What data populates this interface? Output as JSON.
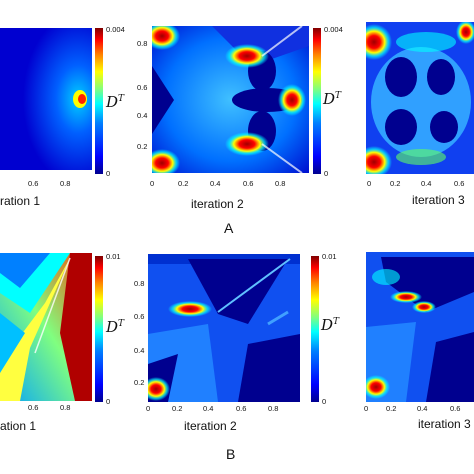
{
  "row_a": {
    "label": "A",
    "colorbar": {
      "max_label": "0.004",
      "min_label": "0",
      "symbol": "D",
      "superscript": "T"
    },
    "captions": {
      "c1": "ration 1",
      "c2": "iteration 2",
      "c3": "iteration 3"
    },
    "p1_xticks": [
      "0.6",
      "0.8"
    ],
    "p2_xticks": [
      "0",
      "0.2",
      "0.4",
      "0.6",
      "0.8"
    ],
    "p2_yticks": [
      "0.8",
      "0.6",
      "0.4",
      "0.2"
    ],
    "p3_xticks": [
      "0",
      "0.2",
      "0.4",
      "0.6"
    ]
  },
  "row_b": {
    "label": "B",
    "colorbar": {
      "max_label": "0.01",
      "min_label": "0",
      "symbol": "D",
      "superscript": "T"
    },
    "captions": {
      "c1": "ation 1",
      "c2": "iteration 2",
      "c3": "iteration 3"
    },
    "p1_xticks": [
      "0.6",
      "0.8"
    ],
    "p2_xticks": [
      "0",
      "0.2",
      "0.4",
      "0.6",
      "0.8"
    ],
    "p2_yticks": [
      "0.8",
      "0.6",
      "0.4",
      "0.2"
    ],
    "p3_xticks": [
      "0",
      "0.2",
      "0.4",
      "0.6"
    ]
  },
  "colors": {
    "low": "#00008f",
    "mid": "#00ffff",
    "high": "#800000"
  }
}
